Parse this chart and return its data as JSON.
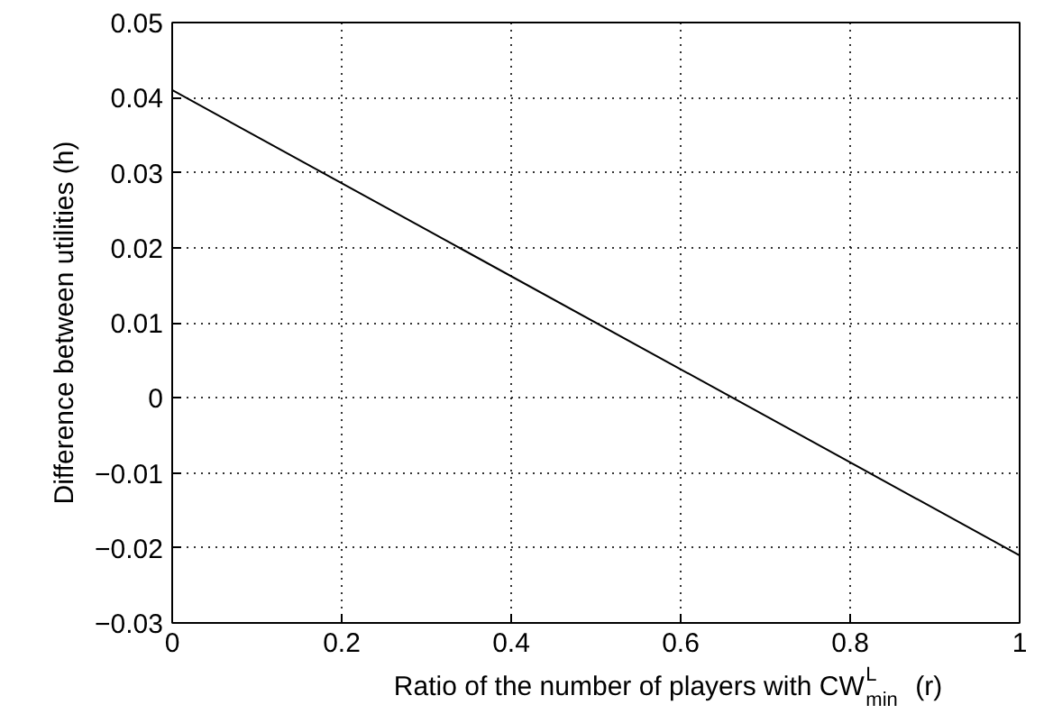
{
  "chart_data": {
    "type": "line",
    "xlabel": "Ratio of the number of players with CW$^{L}$$_{min}$  (r)",
    "ylabel": "Difference between utilities (h)",
    "x": [
      0,
      1
    ],
    "series": [
      {
        "color": "#000000",
        "values": [
          0.041,
          -0.021
        ]
      }
    ],
    "xlim": [
      0,
      1
    ],
    "ylim": [
      -0.03,
      0.05
    ],
    "xticks": [
      0,
      0.2,
      0.4,
      0.6,
      0.8,
      1
    ],
    "yticks": [
      {
        "value": -0.03,
        "label": "−0.03"
      },
      {
        "value": -0.02,
        "label": "−0.02"
      },
      {
        "value": -0.01,
        "label": "−0.01"
      },
      0,
      0.01,
      0.02,
      0.03,
      0.04,
      0.05
    ],
    "grid": true,
    "marker": "none",
    "line_style": "solid"
  }
}
